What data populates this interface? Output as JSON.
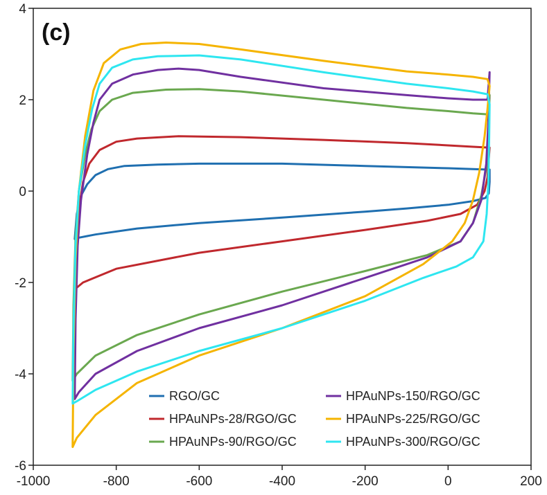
{
  "panel_label": "(c)",
  "chart_data": {
    "type": "line",
    "title": "",
    "xlabel": "",
    "ylabel": "",
    "xlim": [
      -1000,
      200
    ],
    "ylim": [
      -6,
      4
    ],
    "x_ticks": [
      -1000,
      -800,
      -600,
      -400,
      -200,
      0,
      200
    ],
    "y_ticks": [
      -6,
      -4,
      -2,
      0,
      2,
      4
    ],
    "x_tick_labels": [
      "-1000",
      "-800",
      "-600",
      "-400",
      "-200",
      "0",
      "200"
    ],
    "y_tick_labels": [
      "-6",
      "-4",
      "-2",
      "0",
      "2",
      "4"
    ],
    "grid": false,
    "legend_position": "bottom",
    "series": [
      {
        "name": "RGO/GC",
        "color": "#1f6fb0",
        "points": [
          [
            -900,
            -1.05
          ],
          [
            -895,
            -0.5
          ],
          [
            -885,
            -0.1
          ],
          [
            -870,
            0.15
          ],
          [
            -850,
            0.35
          ],
          [
            -820,
            0.48
          ],
          [
            -780,
            0.55
          ],
          [
            -700,
            0.58
          ],
          [
            -600,
            0.6
          ],
          [
            -400,
            0.6
          ],
          [
            -200,
            0.55
          ],
          [
            0,
            0.5
          ],
          [
            60,
            0.48
          ],
          [
            100,
            0.47
          ],
          [
            100,
            0.2
          ],
          [
            98,
            -0.05
          ],
          [
            90,
            -0.15
          ],
          [
            60,
            -0.22
          ],
          [
            0,
            -0.3
          ],
          [
            -100,
            -0.38
          ],
          [
            -200,
            -0.45
          ],
          [
            -400,
            -0.58
          ],
          [
            -600,
            -0.7
          ],
          [
            -750,
            -0.82
          ],
          [
            -850,
            -0.95
          ],
          [
            -890,
            -1.02
          ],
          [
            -900,
            -1.05
          ]
        ]
      },
      {
        "name": "HPAuNPs-28/RGO/GC",
        "color": "#c0282d",
        "points": [
          [
            -900,
            -2.15
          ],
          [
            -898,
            -1.2
          ],
          [
            -890,
            -0.4
          ],
          [
            -880,
            0.2
          ],
          [
            -865,
            0.6
          ],
          [
            -840,
            0.9
          ],
          [
            -800,
            1.08
          ],
          [
            -750,
            1.15
          ],
          [
            -650,
            1.2
          ],
          [
            -500,
            1.18
          ],
          [
            -300,
            1.12
          ],
          [
            -100,
            1.05
          ],
          [
            0,
            1.0
          ],
          [
            60,
            0.97
          ],
          [
            100,
            0.95
          ],
          [
            98,
            0.7
          ],
          [
            95,
            0.3
          ],
          [
            88,
            0.0
          ],
          [
            70,
            -0.3
          ],
          [
            30,
            -0.5
          ],
          [
            -50,
            -0.65
          ],
          [
            -200,
            -0.85
          ],
          [
            -400,
            -1.1
          ],
          [
            -600,
            -1.35
          ],
          [
            -800,
            -1.7
          ],
          [
            -880,
            -2.0
          ],
          [
            -900,
            -2.15
          ]
        ]
      },
      {
        "name": "HPAuNPs-90/RGO/GC",
        "color": "#6aa84f",
        "points": [
          [
            -905,
            -4.15
          ],
          [
            -903,
            -2.5
          ],
          [
            -898,
            -1.0
          ],
          [
            -890,
            0.0
          ],
          [
            -875,
            0.8
          ],
          [
            -860,
            1.35
          ],
          [
            -840,
            1.75
          ],
          [
            -810,
            2.0
          ],
          [
            -760,
            2.15
          ],
          [
            -680,
            2.22
          ],
          [
            -600,
            2.23
          ],
          [
            -500,
            2.18
          ],
          [
            -300,
            2.0
          ],
          [
            -100,
            1.82
          ],
          [
            0,
            1.75
          ],
          [
            60,
            1.7
          ],
          [
            95,
            1.68
          ],
          [
            100,
            2.1
          ],
          [
            97,
            1.2
          ],
          [
            92,
            0.5
          ],
          [
            80,
            -0.1
          ],
          [
            60,
            -0.7
          ],
          [
            30,
            -1.1
          ],
          [
            -50,
            -1.4
          ],
          [
            -200,
            -1.75
          ],
          [
            -400,
            -2.2
          ],
          [
            -600,
            -2.7
          ],
          [
            -750,
            -3.15
          ],
          [
            -850,
            -3.6
          ],
          [
            -895,
            -4.0
          ],
          [
            -905,
            -4.15
          ]
        ]
      },
      {
        "name": "HPAuNPs-150/RGO/GC",
        "color": "#7030a0",
        "points": [
          [
            -900,
            -4.55
          ],
          [
            -898,
            -2.8
          ],
          [
            -893,
            -1.2
          ],
          [
            -885,
            -0.2
          ],
          [
            -870,
            0.8
          ],
          [
            -855,
            1.5
          ],
          [
            -840,
            2.0
          ],
          [
            -810,
            2.35
          ],
          [
            -760,
            2.55
          ],
          [
            -700,
            2.65
          ],
          [
            -650,
            2.68
          ],
          [
            -600,
            2.65
          ],
          [
            -500,
            2.5
          ],
          [
            -300,
            2.25
          ],
          [
            -100,
            2.1
          ],
          [
            0,
            2.03
          ],
          [
            60,
            2.0
          ],
          [
            95,
            2.0
          ],
          [
            100,
            2.6
          ],
          [
            97,
            1.5
          ],
          [
            92,
            0.6
          ],
          [
            80,
            -0.2
          ],
          [
            60,
            -0.7
          ],
          [
            30,
            -1.1
          ],
          [
            -50,
            -1.45
          ],
          [
            -200,
            -1.9
          ],
          [
            -400,
            -2.5
          ],
          [
            -600,
            -3.0
          ],
          [
            -750,
            -3.5
          ],
          [
            -850,
            -4.0
          ],
          [
            -890,
            -4.4
          ],
          [
            -900,
            -4.55
          ]
        ]
      },
      {
        "name": "HPAuNPs-225/RGO/GC",
        "color": "#f5b400",
        "points": [
          [
            -905,
            -5.6
          ],
          [
            -903,
            -3.5
          ],
          [
            -898,
            -1.5
          ],
          [
            -890,
            0.0
          ],
          [
            -875,
            1.2
          ],
          [
            -855,
            2.2
          ],
          [
            -830,
            2.8
          ],
          [
            -790,
            3.1
          ],
          [
            -740,
            3.22
          ],
          [
            -680,
            3.25
          ],
          [
            -600,
            3.22
          ],
          [
            -500,
            3.1
          ],
          [
            -300,
            2.85
          ],
          [
            -100,
            2.62
          ],
          [
            0,
            2.55
          ],
          [
            60,
            2.5
          ],
          [
            95,
            2.45
          ],
          [
            100,
            2.3
          ],
          [
            95,
            1.8
          ],
          [
            88,
            1.2
          ],
          [
            75,
            0.4
          ],
          [
            60,
            -0.2
          ],
          [
            40,
            -0.7
          ],
          [
            10,
            -1.1
          ],
          [
            -60,
            -1.6
          ],
          [
            -200,
            -2.3
          ],
          [
            -400,
            -3.0
          ],
          [
            -600,
            -3.6
          ],
          [
            -750,
            -4.2
          ],
          [
            -850,
            -4.9
          ],
          [
            -895,
            -5.4
          ],
          [
            -905,
            -5.6
          ]
        ]
      },
      {
        "name": "HPAuNPs-300/RGO/GC",
        "color": "#2ee6f0",
        "points": [
          [
            -905,
            -4.65
          ],
          [
            -903,
            -3.0
          ],
          [
            -898,
            -1.2
          ],
          [
            -890,
            0.0
          ],
          [
            -875,
            1.0
          ],
          [
            -858,
            1.8
          ],
          [
            -840,
            2.35
          ],
          [
            -810,
            2.7
          ],
          [
            -760,
            2.88
          ],
          [
            -700,
            2.95
          ],
          [
            -600,
            2.97
          ],
          [
            -500,
            2.88
          ],
          [
            -300,
            2.6
          ],
          [
            -100,
            2.35
          ],
          [
            0,
            2.25
          ],
          [
            60,
            2.18
          ],
          [
            95,
            2.12
          ],
          [
            100,
            1.9
          ],
          [
            99,
            1.2
          ],
          [
            97,
            0.2
          ],
          [
            93,
            -0.5
          ],
          [
            85,
            -1.1
          ],
          [
            60,
            -1.45
          ],
          [
            20,
            -1.65
          ],
          [
            -60,
            -1.9
          ],
          [
            -200,
            -2.4
          ],
          [
            -400,
            -3.0
          ],
          [
            -600,
            -3.5
          ],
          [
            -750,
            -3.95
          ],
          [
            -850,
            -4.35
          ],
          [
            -895,
            -4.6
          ],
          [
            -905,
            -4.65
          ]
        ]
      }
    ]
  }
}
